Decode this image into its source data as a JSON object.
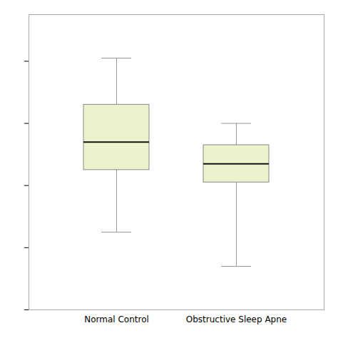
{
  "chart_data": {
    "type": "box",
    "categories": [
      "Normal Control",
      "Obstructive Sleep Apne"
    ],
    "values": [
      {
        "whisker_low": -0.3,
        "q1": 0.1,
        "median": 0.28,
        "q3": 0.52,
        "whisker_high": 0.82
      },
      {
        "whisker_low": -0.52,
        "q1": 0.02,
        "median": 0.14,
        "q3": 0.26,
        "whisker_high": 0.4
      }
    ],
    "color": "#eef2cc",
    "ylim": [
      -0.8,
      1.1
    ],
    "yticks": [
      -0.8,
      -0.4,
      0.0,
      0.4,
      0.8
    ],
    "grid": false,
    "tick_labels": "x"
  }
}
